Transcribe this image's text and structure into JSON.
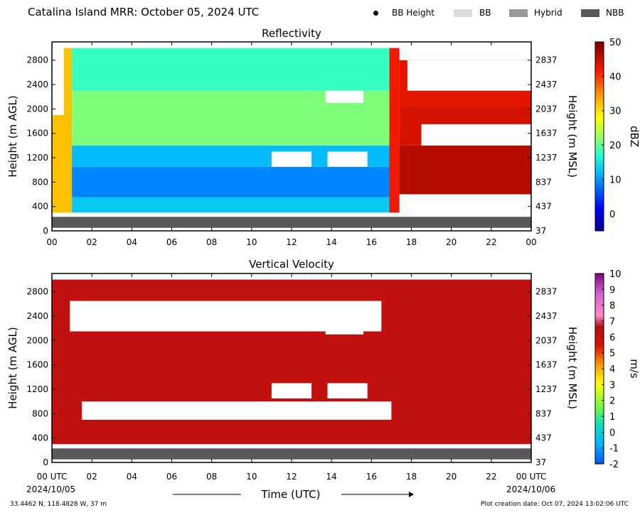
{
  "title": "Catalina Island MRR:  October 05, 2024 UTC",
  "legend": [
    {
      "label": "BB Height",
      "kind": "dot",
      "color": "#000000"
    },
    {
      "label": "BB",
      "kind": "swatch",
      "color": "#dcdcdc"
    },
    {
      "label": "Hybrid",
      "kind": "swatch",
      "color": "#999999"
    },
    {
      "label": "NBB",
      "kind": "swatch",
      "color": "#595959"
    }
  ],
  "footer": {
    "coords": "33.4462 N, 118.4828 W, 37 m",
    "creation": "Plot creation date: Oct 07, 2024 13:02:06 UTC",
    "start_date": "2024/10/05",
    "end_date": "2024/10/06"
  },
  "chart_data": [
    {
      "type": "heatmap",
      "title": "Reflectivity",
      "xlabel": "",
      "ylabel": "Height (m AGL)",
      "ylabel_right": "Height (m MSL)",
      "x_ticks": [
        "00",
        "02",
        "04",
        "06",
        "08",
        "10",
        "12",
        "14",
        "16",
        "18",
        "20",
        "22",
        "00"
      ],
      "xlim": [
        0,
        24
      ],
      "ylim": [
        0,
        3100
      ],
      "y_ticks": [
        0,
        400,
        800,
        1200,
        1600,
        2000,
        2400,
        2800
      ],
      "y_ticks_right": [
        37,
        437,
        837,
        1237,
        1637,
        2037,
        2437,
        2837
      ],
      "colorbar": {
        "label": "dBZ",
        "range": [
          -5,
          50
        ],
        "ticks": [
          0,
          10,
          20,
          30,
          40,
          50
        ]
      },
      "nbb_band_m": [
        50,
        230
      ],
      "data_floor_m": 300,
      "regions": [
        {
          "t": [
            0.0,
            1.0
          ],
          "h": [
            300,
            3000
          ],
          "dbz": 32
        },
        {
          "t": [
            1.0,
            17.0
          ],
          "h": [
            300,
            550
          ],
          "dbz": 13
        },
        {
          "t": [
            1.0,
            17.0
          ],
          "h": [
            550,
            1050
          ],
          "dbz": 9
        },
        {
          "t": [
            1.0,
            17.0
          ],
          "h": [
            1050,
            1400
          ],
          "dbz": 12
        },
        {
          "t": [
            1.0,
            17.0
          ],
          "h": [
            1400,
            2300
          ],
          "dbz": 21
        },
        {
          "t": [
            1.0,
            17.0
          ],
          "h": [
            2300,
            3000
          ],
          "dbz": 18
        },
        {
          "t": [
            16.9,
            17.4
          ],
          "h": [
            300,
            3000
          ],
          "dbz": 42
        },
        {
          "t": [
            17.4,
            24.0
          ],
          "h": [
            600,
            1400
          ],
          "dbz": 46
        },
        {
          "t": [
            17.4,
            24.0
          ],
          "h": [
            1400,
            2050
          ],
          "dbz": 44
        },
        {
          "t": [
            17.4,
            24.0
          ],
          "h": [
            2050,
            2800
          ],
          "dbz": 43
        }
      ],
      "gaps": [
        {
          "t": [
            13.7,
            15.6
          ],
          "h": [
            2100,
            2300
          ]
        },
        {
          "t": [
            11.0,
            13.0
          ],
          "h": [
            1050,
            1300
          ]
        },
        {
          "t": [
            13.8,
            15.8
          ],
          "h": [
            1050,
            1300
          ]
        },
        {
          "t": [
            17.5,
            24.0
          ],
          "h": [
            300,
            550
          ]
        },
        {
          "t": [
            17.8,
            24.0
          ],
          "h": [
            2300,
            2800
          ]
        },
        {
          "t": [
            18.5,
            24.0
          ],
          "h": [
            1400,
            1750
          ]
        },
        {
          "t": [
            0.0,
            0.6
          ],
          "h": [
            1900,
            3000
          ]
        }
      ]
    },
    {
      "type": "heatmap",
      "title": "Vertical Velocity",
      "xlabel": "Time (UTC)",
      "ylabel": "Height (m AGL)",
      "ylabel_right": "Height (m MSL)",
      "x_ticks": [
        "00 UTC",
        "02",
        "04",
        "06",
        "08",
        "10",
        "12",
        "14",
        "16",
        "18",
        "20",
        "22",
        "00 UTC"
      ],
      "xlim": [
        0,
        24
      ],
      "ylim": [
        0,
        3100
      ],
      "y_ticks": [
        0,
        400,
        800,
        1200,
        1600,
        2000,
        2400,
        2800
      ],
      "y_ticks_right": [
        37,
        437,
        837,
        1237,
        1637,
        2037,
        2437,
        2837
      ],
      "colorbar": {
        "label": "m/s",
        "range": [
          -2,
          10
        ],
        "ticks": [
          -2,
          -1,
          0,
          1,
          2,
          3,
          4,
          5,
          6,
          7,
          8,
          9,
          10
        ]
      },
      "nbb_band_m": [
        50,
        230
      ],
      "data_floor_m": 300,
      "regions": [
        {
          "t": [
            0.0,
            24.0
          ],
          "h": [
            300,
            3000
          ],
          "ms": 6
        }
      ],
      "gaps": [
        {
          "t": [
            13.7,
            15.6
          ],
          "h": [
            2100,
            2300
          ]
        },
        {
          "t": [
            11.0,
            13.0
          ],
          "h": [
            1050,
            1300
          ]
        },
        {
          "t": [
            13.8,
            15.8
          ],
          "h": [
            1050,
            1300
          ]
        },
        {
          "t": [
            0.9,
            16.5
          ],
          "h": [
            2150,
            2650
          ]
        },
        {
          "t": [
            1.5,
            17.0
          ],
          "h": [
            700,
            1000
          ]
        }
      ]
    }
  ]
}
